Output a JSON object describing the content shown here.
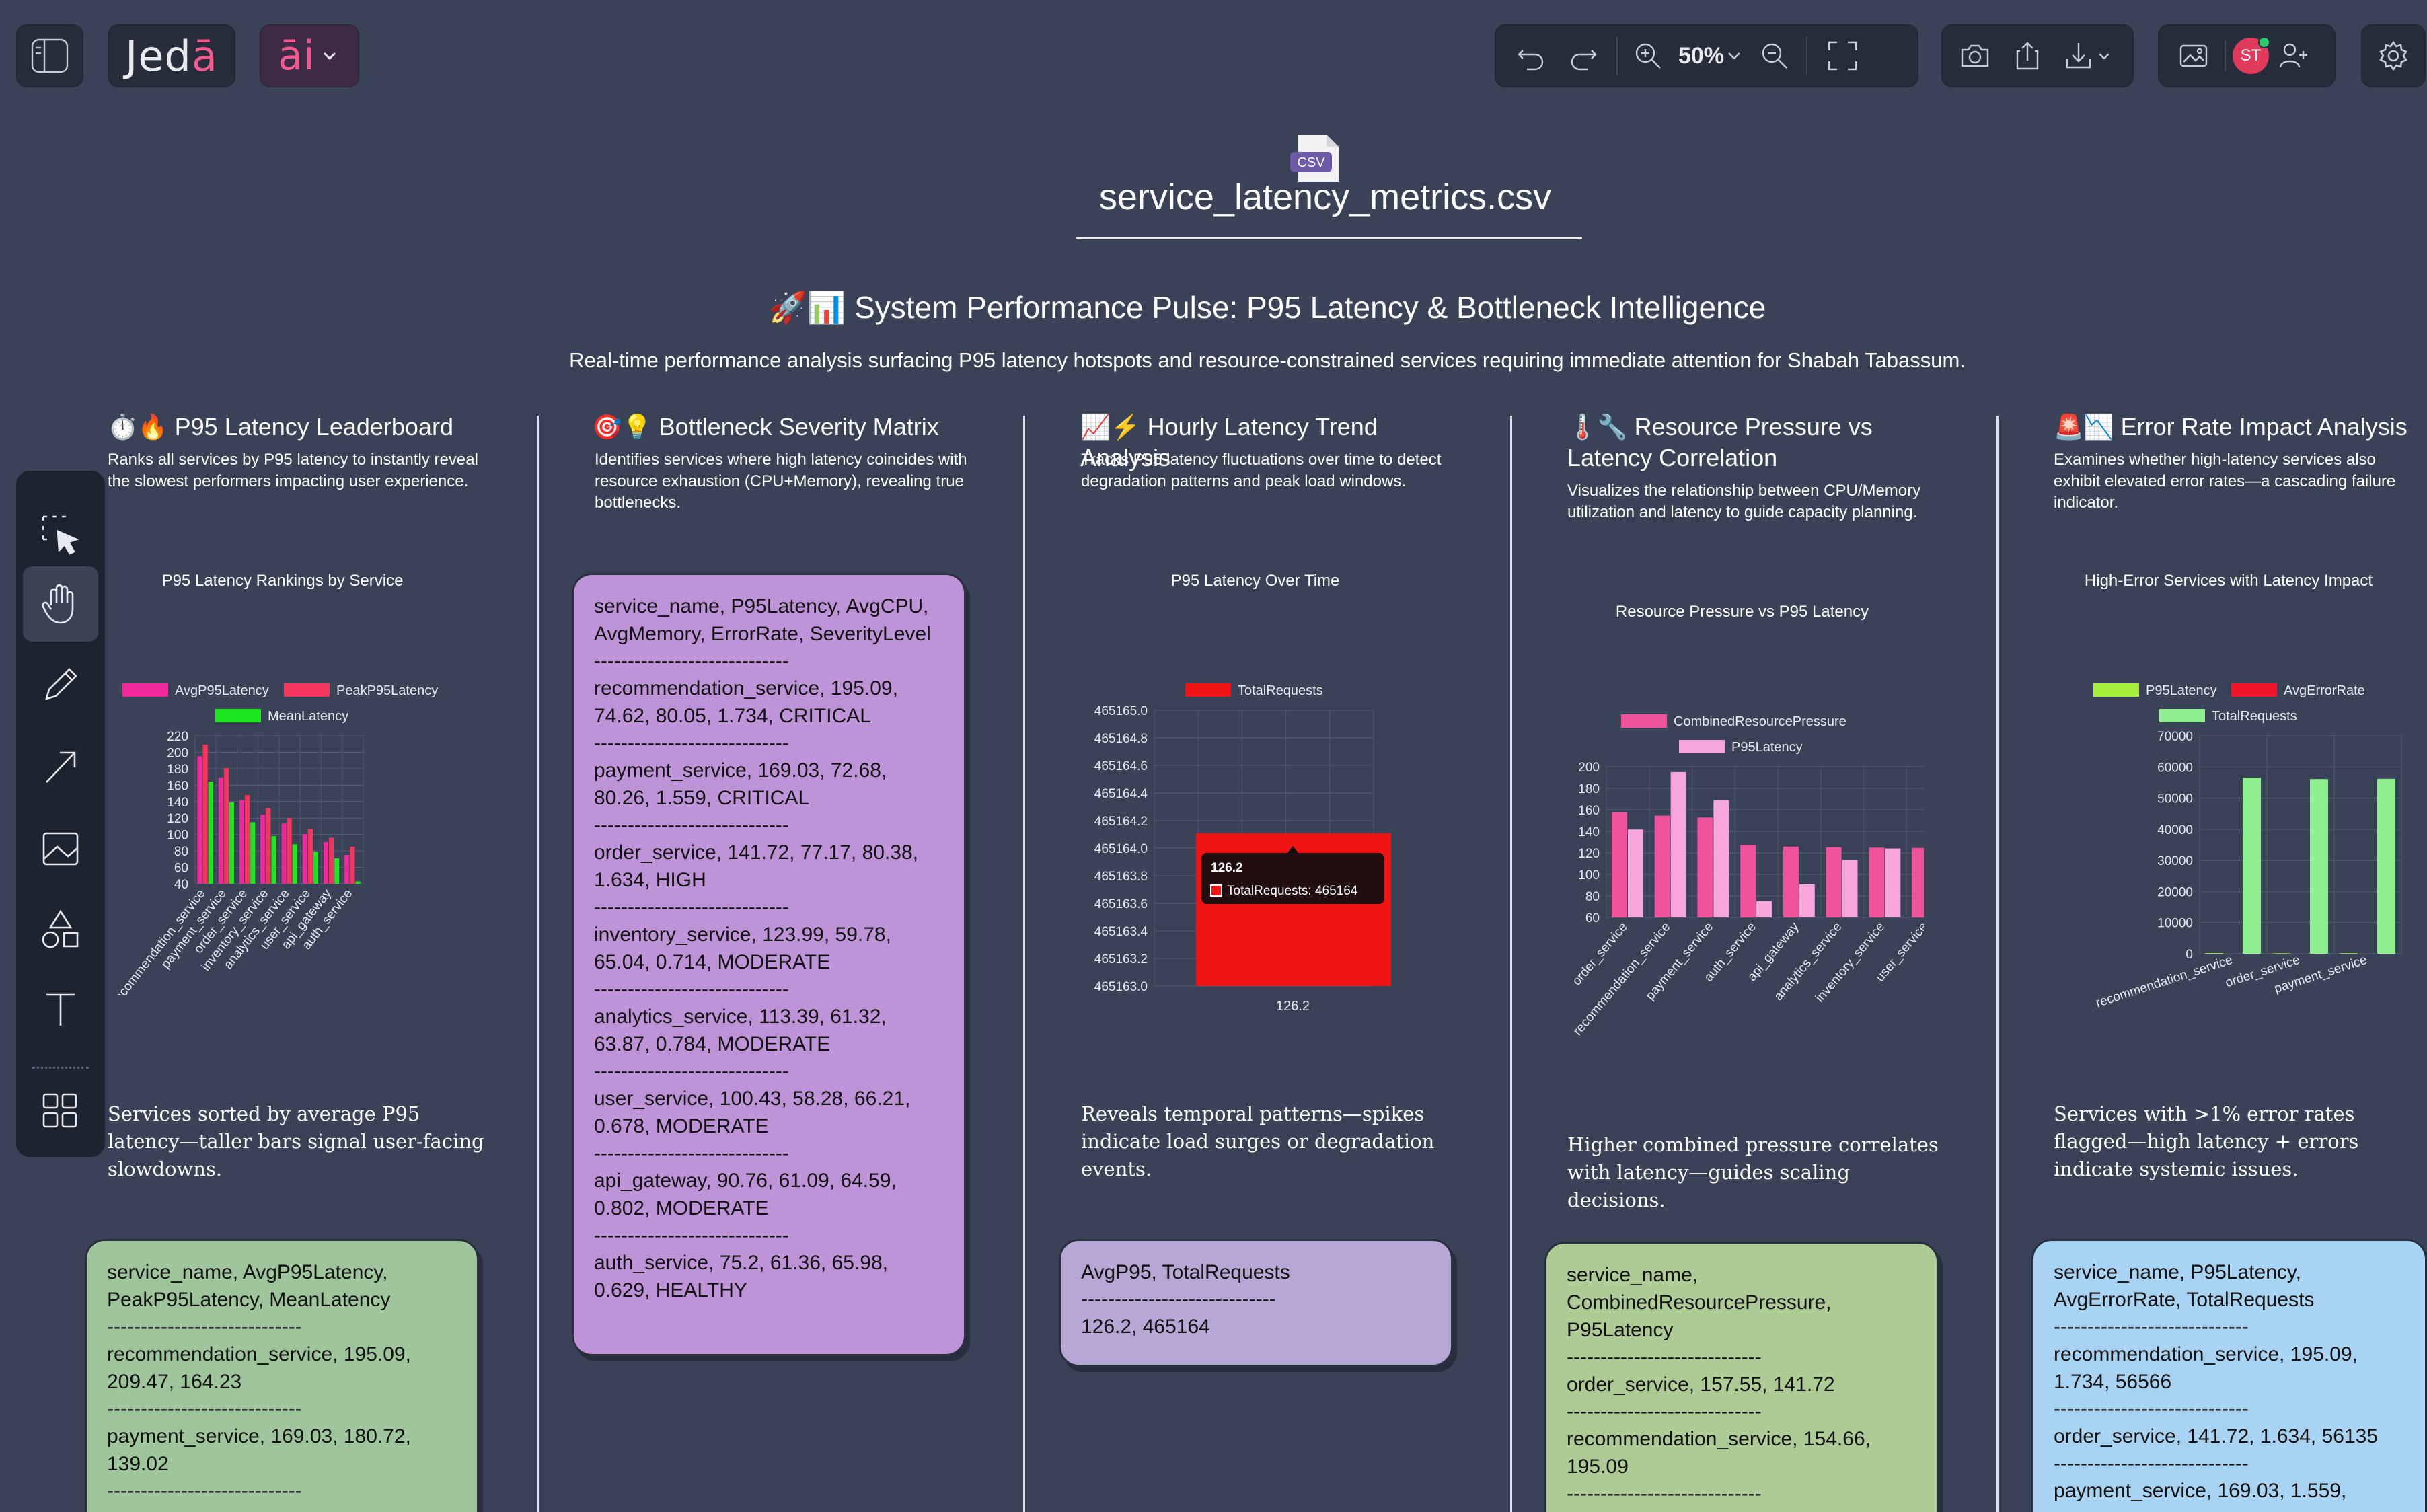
{
  "toolbar": {
    "logo": "Jedā",
    "ai_label": "āi",
    "zoom": "50%",
    "avatar_initials": "ST"
  },
  "file": {
    "badge": "CSV",
    "name": "service_latency_metrics.csv"
  },
  "header": {
    "title": "🚀📊 System Performance Pulse: P95 Latency & Bottleneck Intelligence",
    "subtitle": "Real-time performance analysis surfacing P95 latency hotspots and resource-constrained services requiring immediate attention for Shabah Tabassum."
  },
  "sections": [
    {
      "title": "⏱️🔥 P95 Latency Leaderboard",
      "desc": "Ranks all services by P95 latency to instantly reveal the slowest performers impacting user experience.",
      "chart_title": "P95 Latency Rankings by Service",
      "note": "Services sorted by average P95 latency—taller bars signal user-facing slowdowns.",
      "card_lines": [
        "service_name, AvgP95Latency, PeakP95Latency, MeanLatency",
        "-----------------------------",
        "recommendation_service, 195.09, 209.47, 164.23",
        "-----------------------------",
        "payment_service, 169.03, 180.72, 139.02",
        "-----------------------------"
      ]
    },
    {
      "title": "🎯💡 Bottleneck Severity Matrix",
      "desc": "Identifies services where high latency coincides with resource exhaustion (CPU+Memory), revealing true bottlenecks.",
      "card_lines": [
        "service_name, P95Latency, AvgCPU, AvgMemory, ErrorRate, SeverityLevel",
        "-----------------------------",
        "recommendation_service, 195.09, 74.62, 80.05, 1.734, CRITICAL",
        "-----------------------------",
        "payment_service, 169.03, 72.68, 80.26, 1.559, CRITICAL",
        "-----------------------------",
        "order_service, 141.72, 77.17, 80.38, 1.634, HIGH",
        "-----------------------------",
        "inventory_service, 123.99, 59.78, 65.04, 0.714, MODERATE",
        "-----------------------------",
        "analytics_service, 113.39, 61.32, 63.87, 0.784, MODERATE",
        "-----------------------------",
        "user_service, 100.43, 58.28, 66.21, 0.678, MODERATE",
        "-----------------------------",
        "api_gateway, 90.76, 61.09, 64.59, 0.802, MODERATE",
        "-----------------------------",
        "auth_service, 75.2, 61.36, 65.98, 0.629, HEALTHY"
      ]
    },
    {
      "title": "📈⚡ Hourly Latency Trend Analysis",
      "desc": "Tracks P95 latency fluctuations over time to detect degradation patterns and peak load windows.",
      "chart_title": "P95 Latency Over Time",
      "note": "Reveals temporal patterns—spikes indicate load surges or degradation events.",
      "tooltip_title": "126.2",
      "tooltip_value": "TotalRequests: 465164",
      "card_lines": [
        "AvgP95, TotalRequests",
        "-----------------------------",
        "126.2, 465164"
      ]
    },
    {
      "title": "🌡️🔧 Resource Pressure vs Latency Correlation",
      "desc": "Visualizes the relationship between CPU/Memory utilization and latency to guide capacity planning.",
      "chart_title": "Resource Pressure vs P95 Latency",
      "note": "Higher combined pressure correlates with latency—guides scaling decisions.",
      "card_lines": [
        "service_name, CombinedResourcePressure, P95Latency",
        "-----------------------------",
        "order_service, 157.55, 141.72",
        "-----------------------------",
        "recommendation_service, 154.66, 195.09",
        "-----------------------------"
      ]
    },
    {
      "title": "🚨📉 Error Rate Impact Analysis",
      "desc": "Examines whether high-latency services also exhibit elevated error rates—a cascading failure indicator.",
      "chart_title": "High-Error Services with Latency Impact",
      "note": "Services with >1% error rates flagged—high latency + errors indicate systemic issues.",
      "card_lines": [
        "service_name, P95Latency, AvgErrorRate, TotalRequests",
        "-----------------------------",
        "recommendation_service, 195.09, 1.734, 56566",
        "-----------------------------",
        "order_service, 141.72, 1.634, 56135",
        "-----------------------------",
        "payment_service, 169.03, 1.559,"
      ]
    }
  ],
  "chart_data": [
    {
      "type": "bar",
      "categories": [
        "recommendation_service",
        "payment_service",
        "order_service",
        "inventory_service",
        "analytics_service",
        "user_service",
        "api_gateway",
        "auth_service"
      ],
      "series": [
        {
          "name": "AvgP95Latency",
          "color": "#f0299a",
          "values": [
            195.09,
            169.03,
            141.72,
            123.99,
            113.39,
            100.43,
            90.76,
            75.2
          ]
        },
        {
          "name": "PeakP95Latency",
          "color": "#f5365c",
          "values": [
            209.47,
            180.72,
            148,
            132,
            120,
            107,
            96,
            85
          ]
        },
        {
          "name": "MeanLatency",
          "color": "#1ee61e",
          "values": [
            164.23,
            139.02,
            115,
            98,
            88,
            79,
            71,
            43
          ]
        }
      ],
      "ylim": [
        40,
        220
      ],
      "yticks": [
        40,
        60,
        80,
        100,
        120,
        140,
        160,
        180,
        200,
        220
      ]
    },
    {
      "type": "bar",
      "categories": [
        "126.2"
      ],
      "series": [
        {
          "name": "TotalRequests",
          "color": "#f01414",
          "values": [
            465164
          ]
        }
      ],
      "ylim": [
        465163.0,
        465165.0
      ],
      "yticks": [
        465163.0,
        465163.2,
        465163.4,
        465163.6,
        465163.8,
        465164.0,
        465164.2,
        465164.4,
        465164.6,
        465164.8,
        465165.0
      ]
    },
    {
      "type": "bar",
      "categories": [
        "order_service",
        "recommendation_service",
        "payment_service",
        "auth_service",
        "api_gateway",
        "analytics_service",
        "inventory_service",
        "user_service"
      ],
      "series": [
        {
          "name": "CombinedResourcePressure",
          "color": "#f0529c",
          "values": [
            157.55,
            154.66,
            152.94,
            127.34,
            125.68,
            125.19,
            124.82,
            124.49
          ]
        },
        {
          "name": "P95Latency",
          "color": "#f7a6dc",
          "values": [
            141.72,
            195.09,
            169.03,
            75.2,
            90.76,
            113.39,
            123.99,
            100.43
          ]
        }
      ],
      "ylim": [
        60,
        200
      ],
      "yticks": [
        60,
        80,
        100,
        120,
        140,
        160,
        180,
        200
      ]
    },
    {
      "type": "bar",
      "categories": [
        "recommendation_service",
        "order_service",
        "payment_service"
      ],
      "series": [
        {
          "name": "P95Latency",
          "color": "#a6f03c",
          "values": [
            195.09,
            141.72,
            169.03
          ]
        },
        {
          "name": "AvgErrorRate",
          "color": "#f01428",
          "values": [
            1.734,
            1.634,
            1.559
          ]
        },
        {
          "name": "TotalRequests",
          "color": "#8ef08e",
          "values": [
            56566,
            56135,
            56200
          ]
        }
      ],
      "ylim": [
        0,
        70000
      ],
      "yticks": [
        0,
        10000,
        20000,
        30000,
        40000,
        50000,
        60000,
        70000
      ]
    }
  ]
}
